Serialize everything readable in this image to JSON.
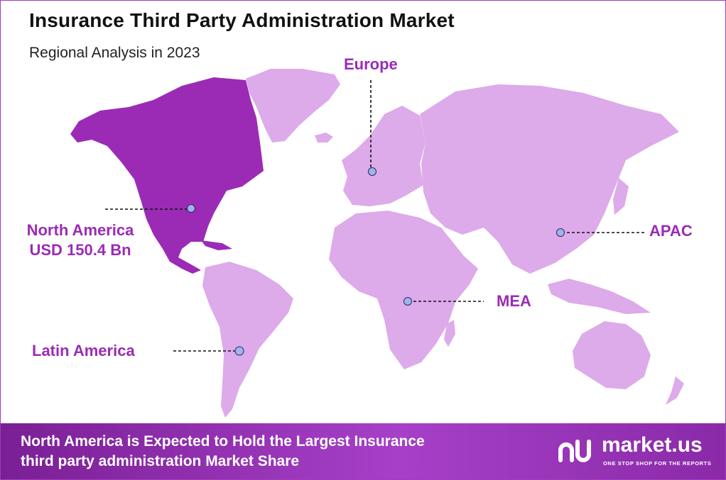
{
  "header": {
    "title": "Insurance Third Party Administration Market",
    "subtitle": "Regional Analysis in 2023"
  },
  "regions": {
    "north_america": {
      "name": "North America",
      "value": "USD 150.4 Bn",
      "highlight": true
    },
    "europe": {
      "name": "Europe"
    },
    "apac": {
      "name": "APAC"
    },
    "mea": {
      "name": "MEA"
    },
    "latin_america": {
      "name": "Latin America"
    }
  },
  "colors": {
    "highlight": "#9b2bb5",
    "land": "#ddaaea",
    "marker": "#9fb3f0",
    "banner": "#8a2aa8",
    "label_text": "#9b2bb5"
  },
  "banner": {
    "line1": "North America is Expected to Hold the Largest Insurance",
    "line2": "third party administration Market Share"
  },
  "logo": {
    "name": "market.us",
    "tagline": "ONE STOP SHOP FOR THE REPORTS",
    "icon": "market-us-logo-icon"
  }
}
